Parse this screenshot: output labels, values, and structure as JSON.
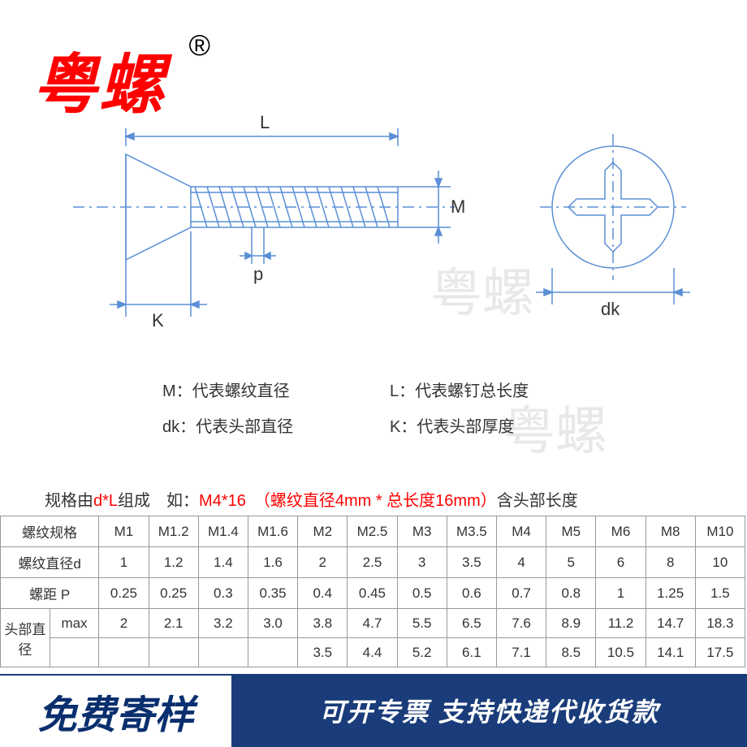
{
  "brand": "粤螺",
  "reg_symbol": "®",
  "watermark": "粤螺",
  "diagram": {
    "stroke": "#5a8fd6",
    "labels": {
      "L": "L",
      "M": "M",
      "p": "p",
      "K": "K",
      "dk": "dk"
    }
  },
  "legend": {
    "M": "M：代表螺纹直径",
    "L": "L：代表螺钉总长度",
    "dk": "dk：代表头部直径",
    "K": "K：代表头部厚度"
  },
  "spec_note": {
    "prefix": "规格由",
    "dL": "d*L",
    "mid": "组成　如：",
    "example": "M4*16　（螺纹直径4mm * 总长度16mm）",
    "suffix": "含头部长度"
  },
  "table": {
    "row_labels": [
      "螺纹规格",
      "螺纹直径d",
      "螺距 P",
      "头部直径"
    ],
    "sub_max": "max",
    "columns": [
      "M1",
      "M1.2",
      "M1.4",
      "M1.6",
      "M2",
      "M2.5",
      "M3",
      "M3.5",
      "M4",
      "M5",
      "M6",
      "M8",
      "M10"
    ],
    "d": [
      "1",
      "1.2",
      "1.4",
      "1.6",
      "2",
      "2.5",
      "3",
      "3.5",
      "4",
      "5",
      "6",
      "8",
      "10"
    ],
    "p": [
      "0.25",
      "0.25",
      "0.3",
      "0.35",
      "0.4",
      "0.45",
      "0.5",
      "0.6",
      "0.7",
      "0.8",
      "1",
      "1.25",
      "1.5"
    ],
    "dk_max": [
      "2",
      "2.1",
      "3.2",
      "3.0",
      "3.8",
      "4.7",
      "5.5",
      "6.5",
      "7.6",
      "8.9",
      "11.2",
      "14.7",
      "18.3"
    ],
    "dk_row2": [
      "",
      "",
      "",
      "",
      "3.5",
      "4.4",
      "5.2",
      "6.1",
      "7.1",
      "8.5",
      "10.5",
      "14.1",
      "17.5"
    ]
  },
  "banner": {
    "left": "免费寄样",
    "right": "可开专票 支持快递代收货款"
  }
}
